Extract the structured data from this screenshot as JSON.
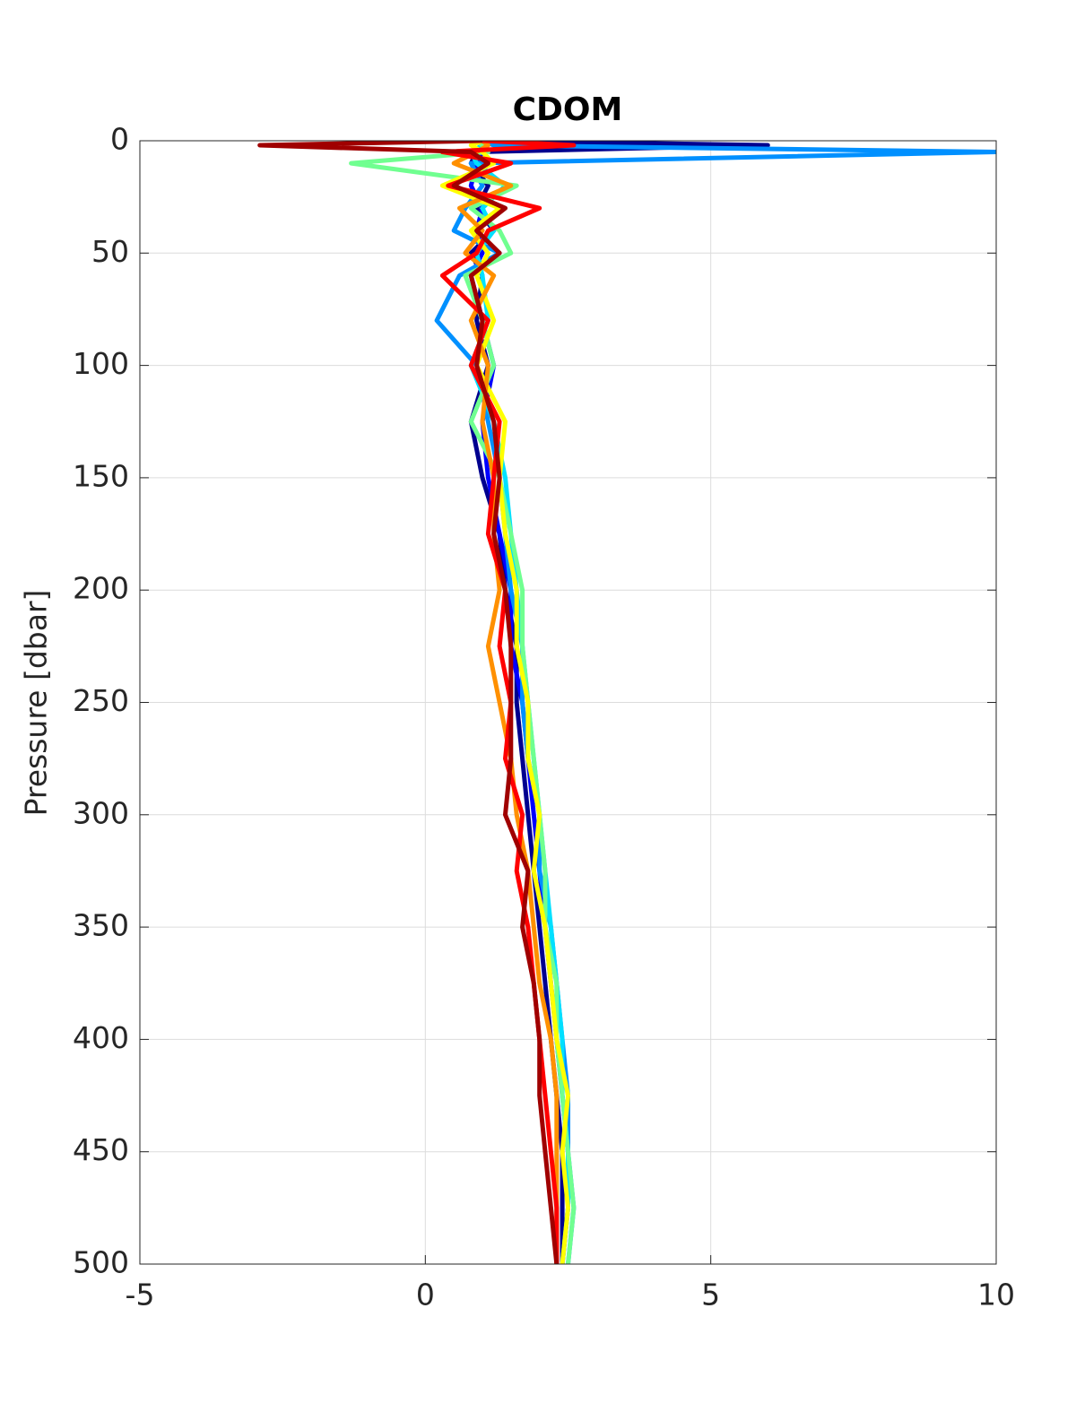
{
  "chart_data": {
    "type": "profile",
    "title": "CDOM",
    "ylabel": "Pressure [dbar]",
    "y": [
      0,
      2,
      5,
      10,
      20,
      30,
      40,
      50,
      60,
      80,
      100,
      125,
      150,
      175,
      200,
      225,
      250,
      275,
      300,
      325,
      350,
      375,
      400,
      425,
      450,
      475,
      500
    ],
    "xlim": [
      -5,
      10
    ],
    "xticks": [
      -5,
      0,
      5,
      10
    ],
    "ylim": [
      0,
      500
    ],
    "yticks": [
      0,
      50,
      100,
      150,
      200,
      250,
      300,
      350,
      400,
      450,
      500
    ],
    "y_reversed": true,
    "grid": true,
    "series": [
      {
        "color": "#00008f",
        "values": [
          1.0,
          6.0,
          0.9,
          0.8,
          1.1,
          0.9,
          1.2,
          0.8,
          1.0,
          0.9,
          1.1,
          0.8,
          1.0,
          1.3,
          1.4,
          1.6,
          1.6,
          1.7,
          1.8,
          1.9,
          2.0,
          2.1,
          2.2,
          2.3,
          2.4,
          2.4,
          2.4
        ]
      },
      {
        "color": "#0000ff",
        "values": [
          1.1,
          1.0,
          1.0,
          0.9,
          0.8,
          1.0,
          0.9,
          1.0,
          0.8,
          1.0,
          1.2,
          1.0,
          1.1,
          1.3,
          1.5,
          1.5,
          1.7,
          1.8,
          1.9,
          2.0,
          2.1,
          2.2,
          2.3,
          2.4,
          2.5,
          2.5,
          2.4
        ]
      },
      {
        "color": "#0090ff",
        "values": [
          1.0,
          1.2,
          10.0,
          0.8,
          1.0,
          0.7,
          0.5,
          1.3,
          0.6,
          0.2,
          0.9,
          1.1,
          1.3,
          1.4,
          1.5,
          1.7,
          1.7,
          1.8,
          2.0,
          2.0,
          2.2,
          2.3,
          2.4,
          2.5,
          2.5,
          2.6,
          2.5
        ]
      },
      {
        "color": "#00e0ff",
        "values": [
          0.9,
          1.0,
          0.8,
          0.9,
          1.4,
          1.0,
          1.2,
          0.9,
          1.0,
          1.1,
          0.8,
          1.2,
          1.4,
          1.5,
          1.6,
          1.7,
          1.8,
          1.9,
          2.0,
          2.1,
          2.2,
          2.3,
          2.4,
          2.4,
          2.5,
          2.5,
          2.4
        ]
      },
      {
        "color": "#70ff90",
        "values": [
          0.9,
          1.0,
          1.1,
          -1.3,
          1.6,
          0.8,
          1.3,
          1.5,
          0.7,
          1.0,
          1.2,
          0.8,
          1.3,
          1.5,
          1.7,
          1.7,
          1.8,
          1.9,
          2.0,
          2.1,
          2.1,
          2.3,
          2.3,
          2.4,
          2.5,
          2.6,
          2.5
        ]
      },
      {
        "color": "#ffff00",
        "values": [
          1.0,
          0.8,
          1.0,
          1.2,
          0.3,
          1.3,
          0.8,
          1.1,
          0.9,
          1.2,
          0.9,
          1.4,
          1.3,
          1.4,
          1.6,
          1.6,
          1.8,
          1.8,
          2.0,
          1.9,
          2.1,
          2.2,
          2.3,
          2.5,
          2.4,
          2.5,
          2.4
        ]
      },
      {
        "color": "#ff9000",
        "values": [
          1.0,
          1.1,
          0.9,
          0.5,
          1.5,
          0.6,
          1.0,
          0.7,
          1.2,
          0.8,
          1.1,
          1.0,
          1.2,
          1.2,
          1.3,
          1.1,
          1.3,
          1.5,
          1.6,
          1.8,
          1.9,
          2.0,
          2.2,
          2.3,
          2.3,
          2.3,
          2.3
        ]
      },
      {
        "color": "#ff0000",
        "values": [
          1.0,
          2.6,
          0.3,
          1.5,
          0.4,
          2.0,
          1.1,
          0.9,
          0.3,
          1.1,
          0.8,
          1.3,
          1.2,
          1.1,
          1.4,
          1.3,
          1.5,
          1.4,
          1.7,
          1.6,
          1.8,
          1.9,
          2.0,
          2.1,
          2.2,
          2.3,
          2.3
        ]
      },
      {
        "color": "#a00000",
        "values": [
          1.0,
          -2.9,
          0.8,
          1.1,
          0.5,
          1.4,
          0.9,
          1.3,
          0.8,
          1.0,
          0.9,
          1.2,
          1.3,
          1.2,
          1.4,
          1.5,
          1.5,
          1.5,
          1.4,
          1.8,
          1.7,
          1.9,
          2.0,
          2.0,
          2.1,
          2.2,
          2.3
        ]
      }
    ]
  }
}
